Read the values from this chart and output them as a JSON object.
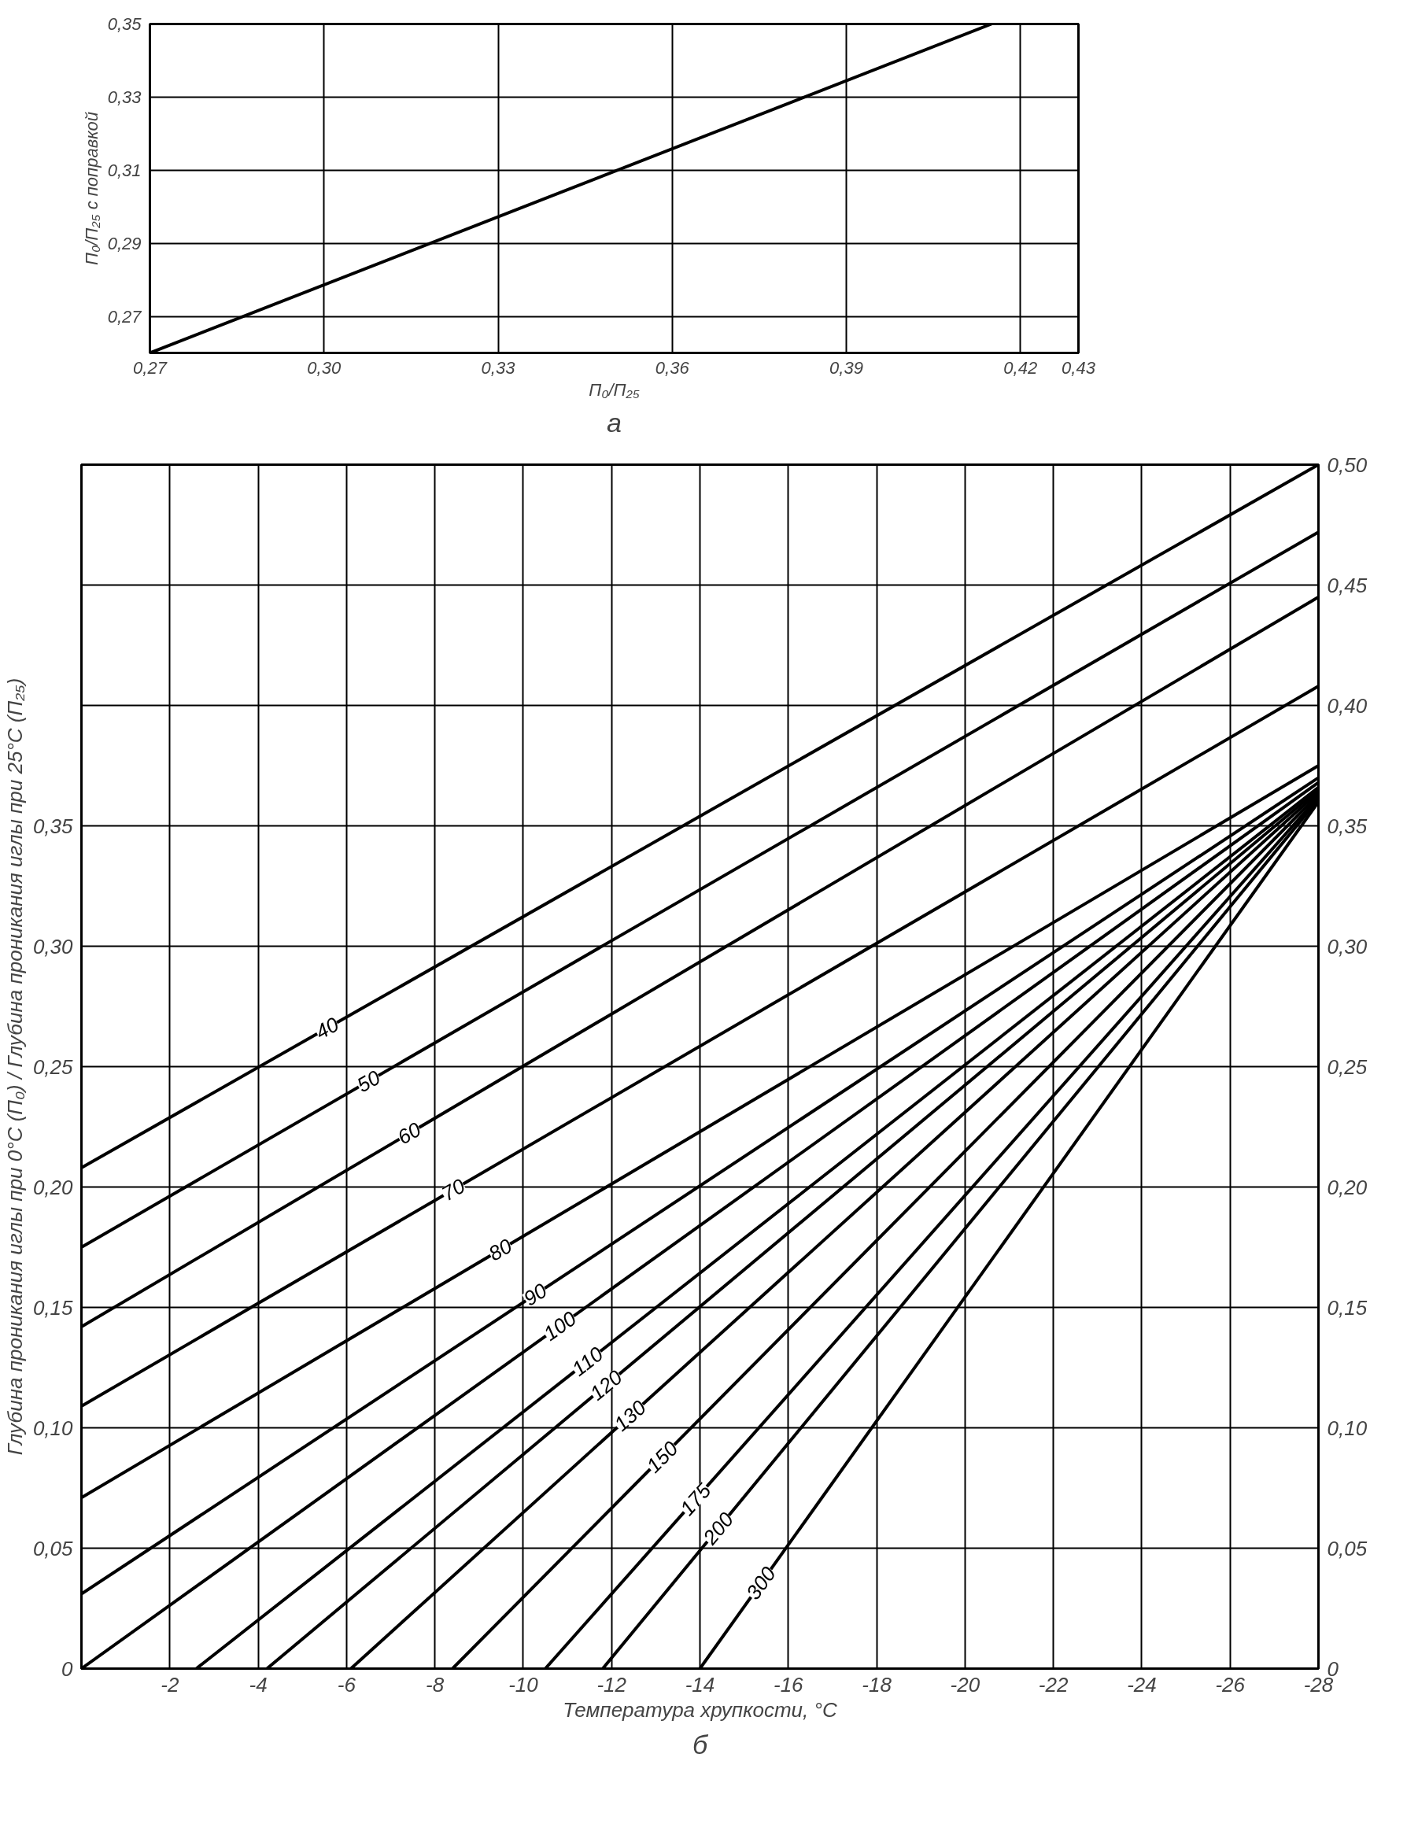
{
  "chart_data": [
    {
      "type": "line",
      "title": "а",
      "xlabel": "П₀/П₂₅",
      "ylabel": "П₀/П₂₅ с поправкой",
      "xlim": [
        0.27,
        0.43
      ],
      "ylim": [
        0.26,
        0.35
      ],
      "xticks": [
        {
          "value": 0.27,
          "label": "0,27"
        },
        {
          "value": 0.3,
          "label": "0,30"
        },
        {
          "value": 0.33,
          "label": "0,33"
        },
        {
          "value": 0.36,
          "label": "0,36"
        },
        {
          "value": 0.39,
          "label": "0,39"
        },
        {
          "value": 0.42,
          "label": "0,42"
        },
        {
          "value": 0.43,
          "label": "0,43"
        }
      ],
      "yticks": [
        {
          "value": 0.27,
          "label": "0,27"
        },
        {
          "value": 0.29,
          "label": "0,29"
        },
        {
          "value": 0.31,
          "label": "0,31"
        },
        {
          "value": 0.33,
          "label": "0,33"
        },
        {
          "value": 0.35,
          "label": "0,35"
        }
      ],
      "grid": true,
      "series": [
        {
          "color": "#000000",
          "x": [
            0.27,
            0.415
          ],
          "values": [
            0.26,
            0.35
          ]
        }
      ]
    },
    {
      "type": "line",
      "title": "б",
      "xlabel": "Температура хрупкости, °C",
      "ylabel": "Глубина проникания иглы при 0°C (П₀) / Глубина проникания иглы при 25°C (П₂₅)",
      "xlim": [
        0,
        -28
      ],
      "ylim": [
        0,
        0.5
      ],
      "xticks": [
        -2,
        -4,
        -6,
        -8,
        -10,
        -12,
        -14,
        -16,
        -18,
        -20,
        -22,
        -24,
        -26,
        -28
      ],
      "yticks": [
        0,
        {
          "value": 0.05,
          "label": "0,05"
        },
        {
          "value": 0.1,
          "label": "0,10"
        },
        {
          "value": 0.15,
          "label": "0,15"
        },
        {
          "value": 0.2,
          "label": "0,20"
        },
        {
          "value": 0.25,
          "label": "0,25"
        },
        {
          "value": 0.3,
          "label": "0,30"
        },
        {
          "value": 0.35,
          "label": "0,35"
        }
      ],
      "y2lim": [
        0,
        0.5
      ],
      "y2ticks": [
        0,
        {
          "value": 0.05,
          "label": "0,05"
        },
        {
          "value": 0.1,
          "label": "0,10"
        },
        {
          "value": 0.15,
          "label": "0,15"
        },
        {
          "value": 0.2,
          "label": "0,20"
        },
        {
          "value": 0.25,
          "label": "0,25"
        },
        {
          "value": 0.3,
          "label": "0,30"
        },
        {
          "value": 0.35,
          "label": "0,35"
        },
        {
          "value": 0.4,
          "label": "0,40"
        },
        {
          "value": 0.45,
          "label": "0,45"
        },
        {
          "value": 0.5,
          "label": "0,50"
        }
      ],
      "grid": true,
      "series": [
        {
          "name": "40",
          "color": "#000000",
          "x": [
            0,
            -28
          ],
          "values": [
            0.208,
            0.5
          ]
        },
        {
          "name": "50",
          "color": "#000000",
          "x": [
            0,
            -28
          ],
          "values": [
            0.175,
            0.472
          ]
        },
        {
          "name": "60",
          "color": "#000000",
          "x": [
            0,
            -28
          ],
          "values": [
            0.142,
            0.445
          ]
        },
        {
          "name": "70",
          "color": "#000000",
          "x": [
            0,
            -28
          ],
          "values": [
            0.109,
            0.408
          ]
        },
        {
          "name": "80",
          "color": "#000000",
          "x": [
            0,
            -28
          ],
          "values": [
            0.071,
            0.375
          ]
        },
        {
          "name": "90",
          "color": "#000000",
          "x": [
            0,
            -28
          ],
          "values": [
            0.031,
            0.37
          ]
        },
        {
          "name": "100",
          "color": "#000000",
          "x": [
            0,
            -28
          ],
          "values": [
            0,
            0.368
          ]
        },
        {
          "name": "110",
          "color": "#000000",
          "x": [
            -2.6,
            -28
          ],
          "values": [
            0,
            0.366
          ]
        },
        {
          "name": "120",
          "color": "#000000",
          "x": [
            -4.2,
            -28
          ],
          "values": [
            0,
            0.365
          ]
        },
        {
          "name": "130",
          "color": "#000000",
          "x": [
            -6.1,
            -28
          ],
          "values": [
            0,
            0.364
          ]
        },
        {
          "name": "150",
          "color": "#000000",
          "x": [
            -8.4,
            -28
          ],
          "values": [
            0,
            0.363
          ]
        },
        {
          "name": "175",
          "color": "#000000",
          "x": [
            -10.5,
            -28
          ],
          "values": [
            0,
            0.362
          ]
        },
        {
          "name": "200",
          "color": "#000000",
          "x": [
            -11.8,
            -28
          ],
          "values": [
            0,
            0.361
          ]
        },
        {
          "name": "300",
          "color": "#000000",
          "x": [
            -14,
            -28
          ],
          "values": [
            0,
            0.36
          ]
        }
      ]
    }
  ]
}
